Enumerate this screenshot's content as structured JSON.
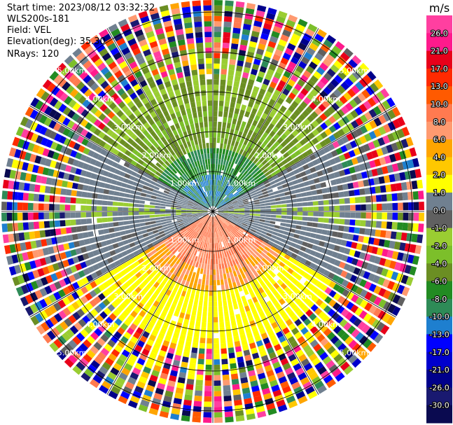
{
  "header": {
    "start_time_line": "Start time: 2023/08/12 03:32:32",
    "instrument_line": "WLS200s-181",
    "field_line": "Field: VEL",
    "elevation_line": "Elevation(deg): 35.30",
    "nrays_line": "NRays: 120"
  },
  "chart_data": {
    "type": "heatmap",
    "projection": "polar-ppi",
    "nrays": 120,
    "range_unit": "km",
    "max_range_km": 5.3,
    "range_ring_labels": [
      "1.00km",
      "2.00km",
      "3.00km",
      "4.00km",
      "5.00km"
    ],
    "ring_radii_km": [
      1,
      2,
      3,
      4,
      5
    ],
    "spokes_deg": [
      0,
      30,
      60,
      90,
      120,
      150,
      180,
      210,
      240,
      270,
      300,
      330
    ],
    "colorbar": {
      "unit": "m/s",
      "tick_labels": [
        "26.0",
        "21.0",
        "17.0",
        "13.0",
        "10.0",
        "8.0",
        "6.0",
        "4.0",
        "2.0",
        "1.0",
        "0.0",
        "-1.0",
        "-2.0",
        "-4.0",
        "-6.0",
        "-8.0",
        "-10.0",
        "-13.0",
        "-17.0",
        "-21.0",
        "-26.0",
        "-30.0"
      ],
      "colors": [
        "#ff3fa0",
        "#ff1a8c",
        "#e8001a",
        "#ff2a00",
        "#ff5a00",
        "#ff7a50",
        "#ff9a70",
        "#ffa500",
        "#ffc800",
        "#ffff00",
        "#708090",
        "#606060",
        "#9acd32",
        "#7cbf2a",
        "#6b8e23",
        "#228b22",
        "#2e8b57",
        "#1e7fcf",
        "#0000ff",
        "#0000cd",
        "#00008b",
        "#191970",
        "#0a0a50"
      ]
    },
    "profile": {
      "near_range_km": 0.2,
      "noise_start_km": 3.4,
      "background_color": "#ffff00",
      "positive_lobe_center_deg": 180,
      "negative_lobe_center_deg": 0,
      "lobe_halfwidth_deg": 60
    }
  }
}
